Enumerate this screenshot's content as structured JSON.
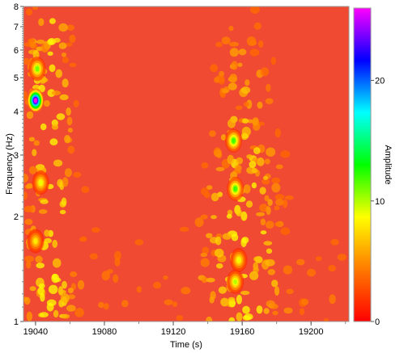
{
  "chart_data": {
    "type": "heatmap",
    "title": "",
    "xlabel": "Time (s)",
    "ylabel": "Frequency (Hz)",
    "colorbar_label": "Amplitude",
    "xlim": [
      19033,
      19222
    ],
    "ylim": [
      1,
      8
    ],
    "yscale": "log",
    "x_ticks": [
      19040,
      19080,
      19120,
      19160,
      19200
    ],
    "y_ticks": [
      1,
      2,
      3,
      4,
      5,
      6,
      7,
      8
    ],
    "colorbar_range": [
      0,
      26
    ],
    "colorbar_ticks": [
      0,
      10,
      20
    ],
    "colormap": [
      "#ff0000",
      "#ff7a00",
      "#ffff00",
      "#00ff00",
      "#00ffff",
      "#0000ff",
      "#ff00ff"
    ],
    "grid": false,
    "peaks": [
      {
        "time": 19040,
        "frequency": 4.3,
        "amplitude": 26
      },
      {
        "time": 19041,
        "frequency": 5.3,
        "amplitude": 11
      },
      {
        "time": 19043,
        "frequency": 2.5,
        "amplitude": 9
      },
      {
        "time": 19040,
        "frequency": 1.7,
        "amplitude": 8
      },
      {
        "time": 19155,
        "frequency": 3.3,
        "amplitude": 12
      },
      {
        "time": 19156,
        "frequency": 2.4,
        "amplitude": 12
      },
      {
        "time": 19158,
        "frequency": 1.5,
        "amplitude": 9
      },
      {
        "time": 19156,
        "frequency": 1.3,
        "amplitude": 10
      }
    ]
  }
}
